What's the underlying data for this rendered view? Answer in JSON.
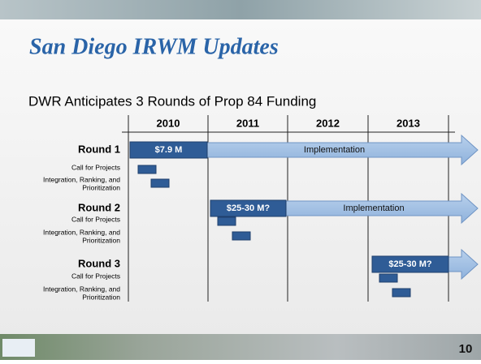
{
  "header": {
    "title": "San Diego IRWM Updates"
  },
  "subtitle": "DWR Anticipates 3 Rounds of Prop 84 Funding",
  "years": [
    "2010",
    "2011",
    "2012",
    "2013"
  ],
  "rounds": [
    {
      "label": "Round 1",
      "funding": "$7.9 M",
      "implementation": "Implementation",
      "steps": [
        [
          "Call for Projects"
        ],
        [
          "Integration, Ranking, and",
          "Prioritization"
        ]
      ]
    },
    {
      "label": "Round 2",
      "funding": "$25-30 M?",
      "implementation": "Implementation",
      "steps": [
        [
          "Call for Projects"
        ],
        [
          "Integration, Ranking, and",
          "Prioritization"
        ]
      ]
    },
    {
      "label": "Round 3",
      "funding": "$25-30 M?",
      "steps": [
        [
          "Call for Projects"
        ],
        [
          "Integration, Ranking, and",
          "Prioritization"
        ]
      ]
    }
  ],
  "page_number": "10"
}
